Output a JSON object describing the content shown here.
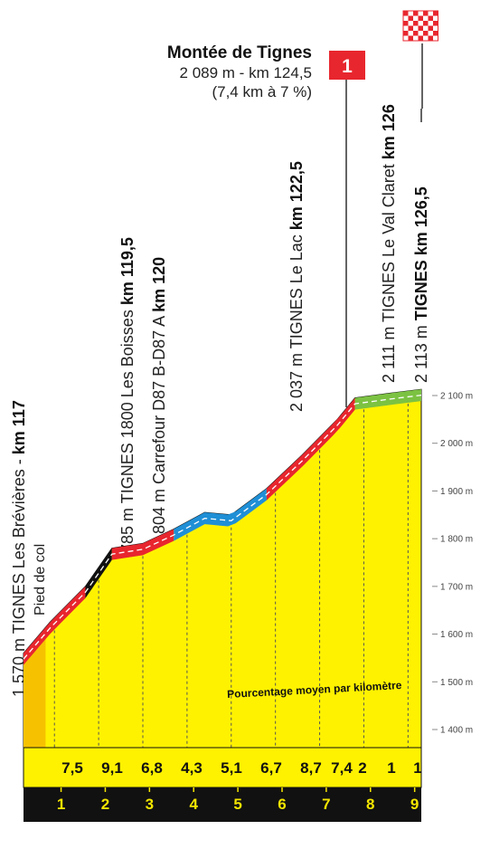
{
  "chart_data": {
    "type": "area",
    "title": "Montée de Tignes",
    "summit": {
      "line1": "2 089 m - km 124,5",
      "line2": "(7,4 km à 7 %)",
      "category_badge": "1"
    },
    "caption": "Pourcentage moyen par kilomètre",
    "foot_label": "Pied de col",
    "x_ticks": [
      "1",
      "2",
      "3",
      "4",
      "5",
      "6",
      "7",
      "8",
      "9"
    ],
    "y_ticks": [
      "2 100 m",
      "2 000 m",
      "1 900 m",
      "1 800 m",
      "1 700 m",
      "1 600 m",
      "1 500 m",
      "1 400 m"
    ],
    "y_tick_values": [
      2100,
      2000,
      1900,
      1800,
      1700,
      1600,
      1500,
      1400
    ],
    "ylim": [
      1400,
      2100
    ],
    "gradients": [
      "7,5",
      "9,1",
      "6,8",
      "4,3",
      "5,1",
      "6,7",
      "8,7",
      "7,4",
      "2",
      "1",
      "1"
    ],
    "waypoints": [
      {
        "alt_text": "1 570 m TIGNES Les Brévières - ",
        "km_text": "km 117"
      },
      {
        "alt_text": "1 785 m TIGNES 1800 Les Boisses ",
        "km_text": "km 119,5"
      },
      {
        "alt_text": "1 804 m Carrefour D87 B-D87 A ",
        "km_text": "km 120"
      },
      {
        "alt_text": "2 037 m TIGNES Le Lac ",
        "km_text": "km 122,5"
      },
      {
        "alt_text": "2 111 m TIGNES Le Val Claret ",
        "km_text": "km 126"
      },
      {
        "alt_text": "2 113 m ",
        "km_text": "TIGNES km 126,5"
      }
    ],
    "profile": {
      "x_km": [
        0,
        0.6,
        1.4,
        2.0,
        2.7,
        3.4,
        4.1,
        4.7,
        5.5,
        6.3,
        7.1,
        7.5,
        8.3,
        9.0
      ],
      "elevation_m": [
        1560,
        1625,
        1700,
        1780,
        1790,
        1820,
        1855,
        1850,
        1905,
        1975,
        2050,
        2095,
        2105,
        2113
      ]
    },
    "segments": [
      {
        "km_from": 0,
        "km_to": 1.4,
        "gradient": "7,5",
        "color": "#e8262e"
      },
      {
        "km_from": 1.4,
        "km_to": 2.0,
        "gradient": "9,1",
        "color": "#111111"
      },
      {
        "km_from": 2.0,
        "km_to": 3.4,
        "gradient": "6,8",
        "color": "#e8262e"
      },
      {
        "km_from": 3.4,
        "km_to": 5.5,
        "gradient": "4,3",
        "color": "#1f8fd6"
      },
      {
        "km_from": 5.5,
        "km_to": 7.5,
        "gradient": "8,7",
        "color": "#e8262e"
      },
      {
        "km_from": 7.5,
        "km_to": 9.0,
        "gradient": "1",
        "color": "#7cc242"
      }
    ],
    "colors": {
      "fill": "#fff200",
      "base": "#111111",
      "km_digits": "#f5e600",
      "category": "#e8262e"
    }
  }
}
